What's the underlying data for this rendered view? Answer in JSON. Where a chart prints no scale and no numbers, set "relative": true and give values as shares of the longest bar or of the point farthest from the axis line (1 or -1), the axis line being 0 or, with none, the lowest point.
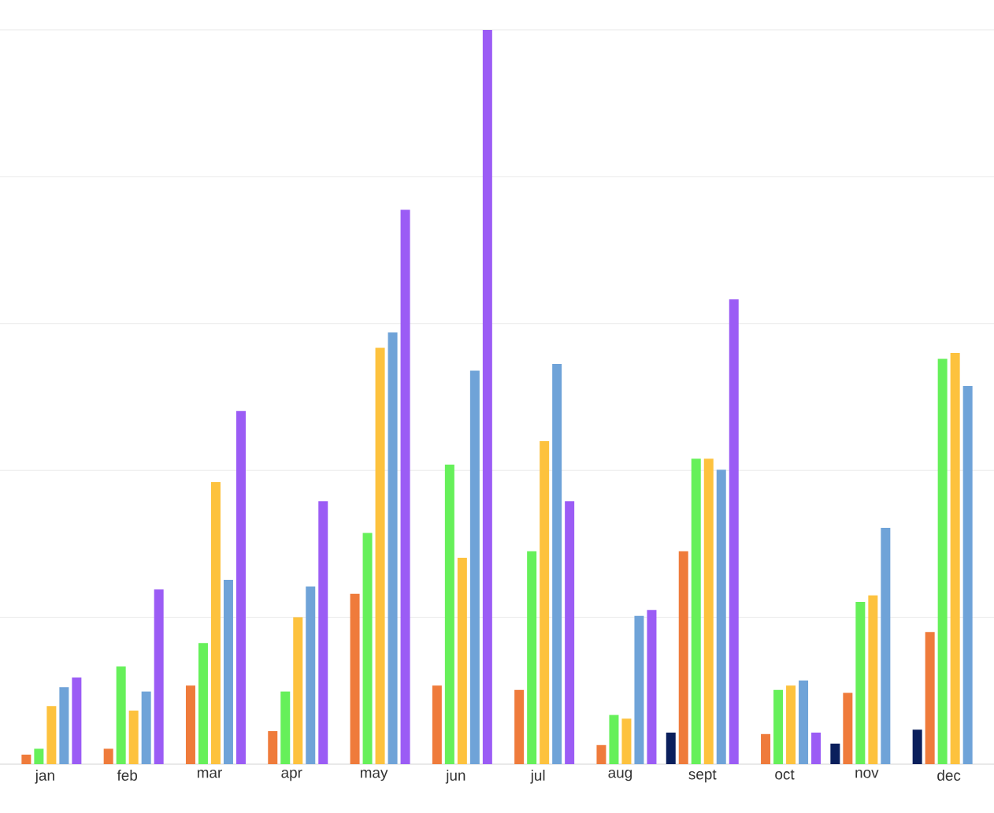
{
  "chart_data": {
    "type": "bar",
    "relative": true,
    "grid": "y",
    "categories": [
      "jan",
      "feb",
      "mar",
      "apr",
      "may",
      "jun",
      "jul",
      "aug",
      "sept",
      "oct",
      "nov",
      "dec"
    ],
    "series": [
      {
        "color": "#0a1f5c",
        "values": [
          null,
          null,
          null,
          null,
          null,
          null,
          null,
          null,
          0.043,
          null,
          0.028,
          0.047
        ]
      },
      {
        "color": "#ef7b3b",
        "values": [
          0.013,
          0.021,
          0.107,
          0.045,
          0.232,
          0.107,
          0.101,
          0.026,
          0.29,
          0.041,
          0.097,
          0.18
        ]
      },
      {
        "color": "#66f05a",
        "values": [
          0.021,
          0.133,
          0.165,
          0.099,
          0.315,
          0.408,
          0.29,
          0.067,
          0.416,
          0.101,
          0.221,
          0.552
        ]
      },
      {
        "color": "#fdc23e",
        "values": [
          0.079,
          0.073,
          0.384,
          0.2,
          0.567,
          0.281,
          0.44,
          0.062,
          0.416,
          0.107,
          0.23,
          0.56
        ]
      },
      {
        "color": "#6fa3d8",
        "values": [
          0.105,
          0.099,
          0.251,
          0.242,
          0.588,
          0.536,
          0.545,
          0.202,
          0.401,
          0.114,
          0.322,
          0.515
        ]
      },
      {
        "color": "#9b5cf5",
        "values": [
          0.118,
          0.238,
          0.481,
          0.358,
          0.755,
          1,
          0.358,
          0.21,
          0.633,
          0.043,
          null,
          null
        ]
      }
    ]
  }
}
